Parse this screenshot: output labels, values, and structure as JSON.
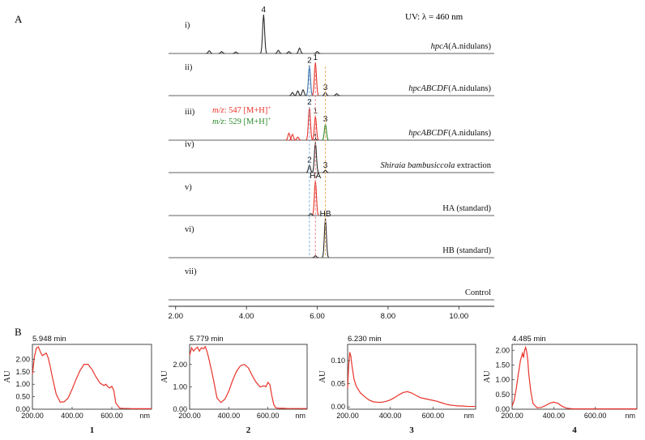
{
  "panel_a": {
    "label": "A",
    "uv_label": "UV: λ = 460 nm",
    "x_ticks": [
      "2.00",
      "4.00",
      "6.00",
      "8.00",
      "10.00"
    ]
  },
  "panel_b": {
    "label": "B"
  },
  "colors": {
    "black_trace": "#2b2b2b",
    "red_trace": "#e8332a",
    "green_trace": "#2e8b2e",
    "blue_trace": "#3a6ea8",
    "spectrum": "#e8332a",
    "guide_red": "#f08a8a",
    "guide_blue": "#8ab4e0",
    "guide_orange": "#f0b060"
  },
  "chart_data": [
    {
      "type": "line",
      "panel": "A",
      "title": "UV: λ = 460 nm",
      "xlabel": "",
      "ylabel": "",
      "xlim": [
        1.8,
        11.0
      ],
      "x_ticks": [
        2.0,
        4.0,
        6.0,
        8.0,
        10.0
      ],
      "grid": false,
      "traces": [
        {
          "roman": "i)",
          "label_pre": "",
          "label_italic": "hpcA",
          "label_post": "(A.nidulans)",
          "peaks": [
            {
              "x": 4.485,
              "h": 1.0,
              "label": "4"
            },
            {
              "x": 2.95,
              "h": 0.07
            },
            {
              "x": 3.3,
              "h": 0.05
            },
            {
              "x": 3.7,
              "h": 0.04
            },
            {
              "x": 4.9,
              "h": 0.08
            },
            {
              "x": 5.5,
              "h": 0.14
            },
            {
              "x": 5.2,
              "h": 0.05
            },
            {
              "x": 6.0,
              "h": 0.05
            }
          ]
        },
        {
          "roman": "ii)",
          "label_pre": "",
          "label_italic": "hpcABCDF",
          "label_post": "(A.nidulans)",
          "peaks": [
            {
              "x": 5.779,
              "h": 0.78,
              "label": "2",
              "color": "blue"
            },
            {
              "x": 5.948,
              "h": 0.85,
              "label": "1",
              "color": "red"
            },
            {
              "x": 6.23,
              "h": 0.08,
              "label": "3"
            },
            {
              "x": 5.45,
              "h": 0.12
            },
            {
              "x": 5.6,
              "h": 0.15
            },
            {
              "x": 5.3,
              "h": 0.08
            },
            {
              "x": 6.55,
              "h": 0.05
            }
          ]
        },
        {
          "roman": "iii)",
          "label_pre": "",
          "label_italic": "hpcABCDF",
          "label_post": "(A.nidulans)",
          "ms_labels": [
            {
              "mz": "m/z",
              "text": ": 547 [M+H]",
              "sup": "+",
              "color": "red"
            },
            {
              "mz": "m/z",
              "text": ": 529 [M+H]",
              "sup": "+",
              "color": "green"
            }
          ],
          "peaks": [
            {
              "x": 5.779,
              "h": 0.85,
              "label": "2",
              "color": "red"
            },
            {
              "x": 5.948,
              "h": 0.62,
              "label": "1",
              "color": "red"
            },
            {
              "x": 6.23,
              "h": 0.42,
              "label": "3",
              "color": "green"
            },
            {
              "x": 5.2,
              "h": 0.18,
              "color": "red"
            },
            {
              "x": 5.3,
              "h": 0.15,
              "color": "red"
            },
            {
              "x": 5.45,
              "h": 0.08,
              "color": "red"
            }
          ]
        },
        {
          "roman": "iv)",
          "label_pre": "",
          "label_italic": "Shiraia bambusiccola",
          "label_post": " extraction",
          "peaks": [
            {
              "x": 5.779,
              "h": 0.2,
              "label": "2"
            },
            {
              "x": 5.948,
              "h": 0.78,
              "label": "1"
            },
            {
              "x": 6.23,
              "h": 0.06,
              "label": "3"
            }
          ]
        },
        {
          "roman": "v)",
          "label_pre": "",
          "label_italic": "",
          "label_post": "HA (standard)",
          "peaks": [
            {
              "x": 5.948,
              "h": 0.9,
              "label": "HA",
              "color": "red"
            },
            {
              "x": 5.82,
              "h": 0.05
            }
          ]
        },
        {
          "roman": "vi)",
          "label_pre": "",
          "label_italic": "",
          "label_post": "HB (standard)",
          "peaks": [
            {
              "x": 6.23,
              "h": 1.0,
              "label": "HB"
            },
            {
              "x": 5.95,
              "h": 0.05
            }
          ]
        },
        {
          "roman": "vii)",
          "label_pre": "",
          "label_italic": "",
          "label_post": "Control",
          "peaks": []
        }
      ]
    },
    {
      "type": "line",
      "panel": "B",
      "title": "5.948 min",
      "compound": "1",
      "xlabel": "nm",
      "ylabel": "AU",
      "xlim": [
        200,
        800
      ],
      "ylim": [
        0,
        2.6
      ],
      "x_ticks": [
        "200.00",
        "400.00",
        "600.00"
      ],
      "y_ticks": [
        "0.00",
        "0.50",
        "1.00",
        "1.50",
        "2.00"
      ],
      "x": [
        200,
        210,
        220,
        230,
        240,
        250,
        260,
        270,
        280,
        290,
        300,
        320,
        340,
        360,
        380,
        400,
        420,
        440,
        460,
        480,
        500,
        520,
        540,
        560,
        570,
        580,
        590,
        600,
        610,
        620,
        640,
        660,
        680,
        700,
        720,
        740,
        760,
        780,
        800
      ],
      "y": [
        1.4,
        2.1,
        2.45,
        2.5,
        2.3,
        2.15,
        2.2,
        2.25,
        2.05,
        1.7,
        1.3,
        0.6,
        0.28,
        0.3,
        0.45,
        0.8,
        1.2,
        1.55,
        1.8,
        1.8,
        1.6,
        1.3,
        1.05,
        0.95,
        1.0,
        0.9,
        0.85,
        0.92,
        0.75,
        0.25,
        0.04,
        0.03,
        0.03,
        0.02,
        0.02,
        0.02,
        0.02,
        0.02,
        0.02
      ]
    },
    {
      "type": "line",
      "panel": "B",
      "title": "5.779 min",
      "compound": "2",
      "xlabel": "nm",
      "ylabel": "AU",
      "xlim": [
        200,
        800
      ],
      "ylim": [
        0,
        2.9
      ],
      "x_ticks": [
        "200.00",
        "400.00",
        "600.00"
      ],
      "y_ticks": [
        "0.00",
        "1.00",
        "2.00"
      ],
      "x": [
        200,
        210,
        220,
        230,
        240,
        250,
        260,
        270,
        280,
        290,
        300,
        320,
        340,
        360,
        380,
        400,
        420,
        440,
        460,
        480,
        500,
        520,
        540,
        560,
        580,
        590,
        600,
        610,
        620,
        630,
        640,
        660,
        680,
        700,
        720,
        740,
        760,
        780,
        800
      ],
      "y": [
        2.4,
        2.75,
        2.6,
        2.7,
        2.78,
        2.6,
        2.75,
        2.7,
        2.8,
        2.55,
        2.2,
        1.4,
        0.5,
        0.3,
        0.45,
        0.8,
        1.3,
        1.7,
        1.95,
        2.0,
        1.85,
        1.5,
        1.2,
        1.0,
        1.05,
        1.0,
        1.2,
        1.1,
        0.6,
        0.2,
        0.06,
        0.04,
        0.04,
        0.03,
        0.03,
        0.03,
        0.03,
        0.03,
        0.03
      ]
    },
    {
      "type": "line",
      "panel": "B",
      "title": "6.230 min",
      "compound": "3",
      "xlabel": "nm",
      "ylabel": "AU",
      "xlim": [
        200,
        800
      ],
      "ylim": [
        -0.005,
        0.135
      ],
      "x_ticks": [
        "200.00",
        "400.00",
        "600.00"
      ],
      "y_ticks": [
        "0.00",
        "0.05",
        "0.10"
      ],
      "x": [
        200,
        205,
        210,
        215,
        220,
        230,
        240,
        260,
        280,
        300,
        320,
        340,
        360,
        380,
        400,
        420,
        440,
        460,
        480,
        500,
        520,
        540,
        560,
        580,
        600,
        620,
        640,
        660,
        680,
        700,
        720,
        740,
        760,
        780,
        800
      ],
      "y": [
        0.04,
        0.09,
        0.118,
        0.11,
        0.09,
        0.06,
        0.045,
        0.03,
        0.022,
        0.015,
        0.011,
        0.01,
        0.01,
        0.012,
        0.015,
        0.02,
        0.026,
        0.031,
        0.033,
        0.03,
        0.025,
        0.02,
        0.018,
        0.016,
        0.014,
        0.012,
        0.009,
        0.006,
        0.004,
        0.003,
        0.002,
        0.002,
        0.001,
        0.001,
        0.001
      ]
    },
    {
      "type": "line",
      "panel": "B",
      "title": "4.485 min",
      "compound": "4",
      "xlabel": "nm",
      "ylabel": "AU",
      "xlim": [
        200,
        800
      ],
      "ylim": [
        0,
        2.2
      ],
      "x_ticks": [
        "200.00",
        "400.00",
        "600.00"
      ],
      "y_ticks": [
        "0.00",
        "0.50",
        "1.00",
        "1.50",
        "2.00"
      ],
      "x": [
        200,
        210,
        220,
        230,
        240,
        250,
        255,
        260,
        265,
        270,
        275,
        280,
        290,
        300,
        320,
        340,
        360,
        380,
        400,
        420,
        440,
        460,
        480,
        500,
        550,
        600,
        650,
        700,
        750,
        800
      ],
      "y": [
        0.1,
        0.3,
        0.7,
        1.2,
        1.65,
        1.9,
        1.75,
        2.0,
        2.1,
        1.95,
        1.7,
        1.2,
        0.6,
        0.2,
        0.05,
        0.06,
        0.12,
        0.2,
        0.24,
        0.2,
        0.1,
        0.04,
        0.02,
        0.01,
        0.01,
        0.01,
        0.01,
        0.01,
        0.01,
        0.01
      ]
    }
  ]
}
